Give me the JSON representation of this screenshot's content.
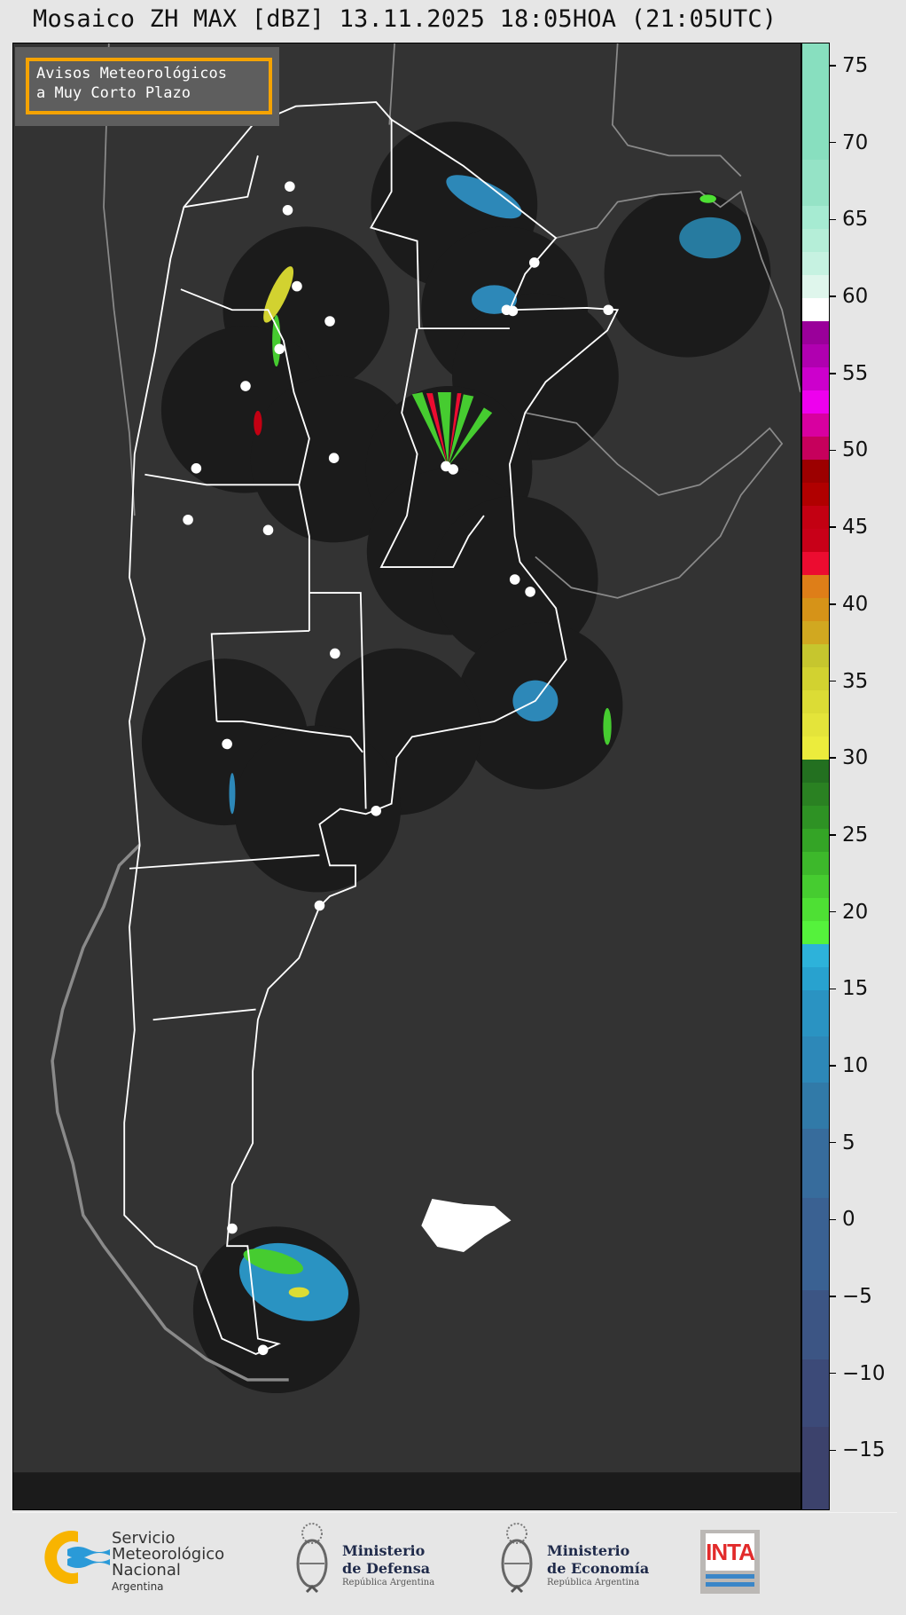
{
  "title": "Mosaico ZH MAX [dBZ] 13.11.2025 18:05HOA (21:05UTC)",
  "legend": {
    "line1": "Avisos Meteorológicos",
    "line2": "a Muy Corto Plazo",
    "border_color": "#f5a300"
  },
  "colorbar": {
    "unit": "dBZ",
    "range": [
      -18.9,
      76.5
    ],
    "ticks": [
      75,
      70,
      65,
      60,
      55,
      50,
      45,
      40,
      35,
      30,
      25,
      20,
      15,
      10,
      5,
      0,
      -5,
      -10,
      -15
    ],
    "tick_labels": [
      "75",
      "70",
      "65",
      "60",
      "55",
      "50",
      "45",
      "40",
      "35",
      "30",
      "25",
      "20",
      "15",
      "10",
      "5",
      "0",
      "−5",
      "−10",
      "−15"
    ],
    "bands": [
      {
        "from": -18.9,
        "to": -13.4,
        "color": "#3c426c"
      },
      {
        "from": -13.4,
        "to": -9,
        "color": "#3c4a78"
      },
      {
        "from": -9,
        "to": -4.5,
        "color": "#3c5584"
      },
      {
        "from": -4.5,
        "to": 1.5,
        "color": "#3a6192"
      },
      {
        "from": 1.5,
        "to": 6,
        "color": "#376c9c"
      },
      {
        "from": 6,
        "to": 9,
        "color": "#317aa8"
      },
      {
        "from": 9,
        "to": 12,
        "color": "#2d88b8"
      },
      {
        "from": 12,
        "to": 15,
        "color": "#2a93c2"
      },
      {
        "from": 15,
        "to": 16.5,
        "color": "#28a2cf"
      },
      {
        "from": 16.5,
        "to": 18,
        "color": "#2db2da"
      },
      {
        "from": 18,
        "to": 19.5,
        "color": "#55f23c"
      },
      {
        "from": 19.5,
        "to": 21,
        "color": "#4ee034"
      },
      {
        "from": 21,
        "to": 22.5,
        "color": "#46cc30"
      },
      {
        "from": 22.5,
        "to": 24,
        "color": "#3db82b"
      },
      {
        "from": 24,
        "to": 25.5,
        "color": "#34a426"
      },
      {
        "from": 25.5,
        "to": 27,
        "color": "#2e9224"
      },
      {
        "from": 27,
        "to": 28.5,
        "color": "#2a8122"
      },
      {
        "from": 28.5,
        "to": 30,
        "color": "#237020"
      },
      {
        "from": 30,
        "to": 31.5,
        "color": "#ecec3c"
      },
      {
        "from": 31.5,
        "to": 33,
        "color": "#e4e43a"
      },
      {
        "from": 33,
        "to": 34.5,
        "color": "#dcdc35"
      },
      {
        "from": 34.5,
        "to": 36,
        "color": "#d2d230"
      },
      {
        "from": 36,
        "to": 37.5,
        "color": "#c6c62e"
      },
      {
        "from": 37.5,
        "to": 39,
        "color": "#d1a820"
      },
      {
        "from": 39,
        "to": 40.5,
        "color": "#d69318"
      },
      {
        "from": 40.5,
        "to": 42,
        "color": "#de7e18"
      },
      {
        "from": 42,
        "to": 43.5,
        "color": "#ec0c30"
      },
      {
        "from": 43.5,
        "to": 45,
        "color": "#c80018"
      },
      {
        "from": 45,
        "to": 46.5,
        "color": "#c30012"
      },
      {
        "from": 46.5,
        "to": 48,
        "color": "#b00000"
      },
      {
        "from": 48,
        "to": 49.5,
        "color": "#9c0000"
      },
      {
        "from": 49.5,
        "to": 51,
        "color": "#c6005c"
      },
      {
        "from": 51,
        "to": 52.5,
        "color": "#d800a0"
      },
      {
        "from": 52.5,
        "to": 54,
        "color": "#ee00ee"
      },
      {
        "from": 54,
        "to": 55.5,
        "color": "#cc00cc"
      },
      {
        "from": 55.5,
        "to": 57,
        "color": "#b000b0"
      },
      {
        "from": 57,
        "to": 58.5,
        "color": "#9a009a"
      },
      {
        "from": 58.5,
        "to": 60,
        "color": "#ffffff"
      },
      {
        "from": 60,
        "to": 61.5,
        "color": "#dff6ec"
      },
      {
        "from": 61.5,
        "to": 63,
        "color": "#c6f2e1"
      },
      {
        "from": 63,
        "to": 64.5,
        "color": "#b5eed8"
      },
      {
        "from": 64.5,
        "to": 66,
        "color": "#a6ebd2"
      },
      {
        "from": 66,
        "to": 69,
        "color": "#95e3c6"
      },
      {
        "from": 69,
        "to": 76.5,
        "color": "#88dfbf"
      }
    ]
  },
  "map": {
    "background": "#333333",
    "radar_coverage_color": "#1b1b1b",
    "border_color": "#ffffff",
    "neighbor_border_color": "#8a8a8a"
  },
  "footer": {
    "smn": {
      "line1": "Servicio",
      "line2": "Meteorológico",
      "line3": "Nacional",
      "line4": "Argentina"
    },
    "defensa": {
      "line1": "Ministerio",
      "line2": "de Defensa",
      "line3": "República Argentina"
    },
    "economia": {
      "line1": "Ministerio",
      "line2": "de Economía",
      "line3": "República Argentina"
    },
    "inta": {
      "label": "INTA"
    }
  }
}
